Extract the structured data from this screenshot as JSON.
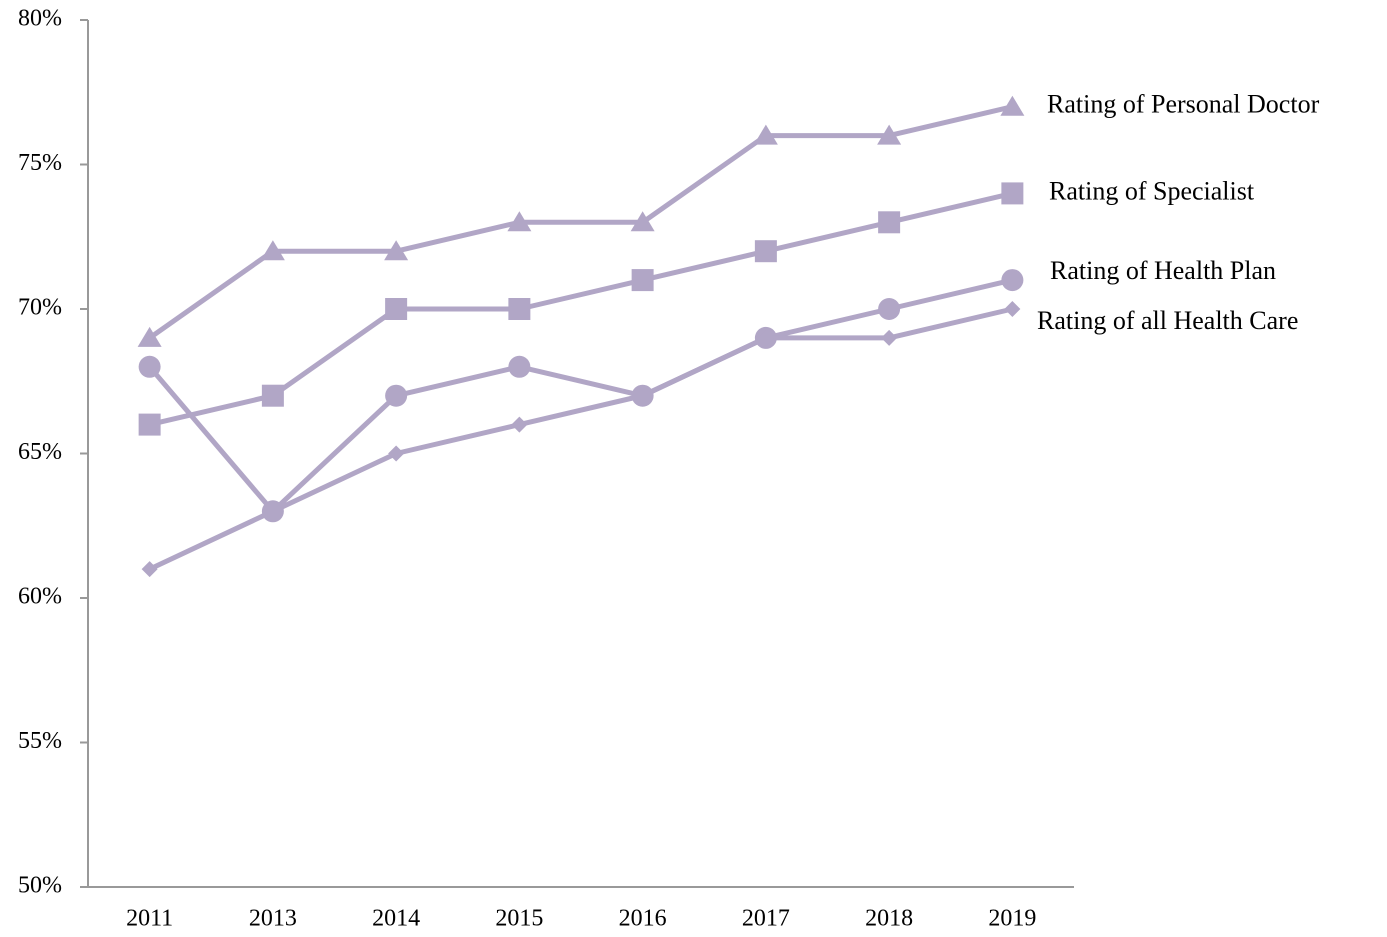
{
  "chart_data": {
    "type": "line",
    "categories": [
      "2011",
      "2013",
      "2014",
      "2015",
      "2016",
      "2017",
      "2018",
      "2019"
    ],
    "series": [
      {
        "name": "Rating of Personal Doctor",
        "color": "#b1a6c6",
        "marker": "triangle",
        "values": [
          69,
          72,
          72,
          73,
          73,
          76,
          76,
          77
        ]
      },
      {
        "name": "Rating of Specialist",
        "color": "#b1a6c6",
        "marker": "square",
        "values": [
          66,
          67,
          70,
          70,
          71,
          72,
          73,
          74
        ]
      },
      {
        "name": "Rating of Health Plan",
        "color": "#b1a6c6",
        "marker": "circle",
        "values": [
          68,
          63,
          67,
          68,
          67,
          69,
          70,
          71
        ]
      },
      {
        "name": "Rating of all Health Care",
        "color": "#b1a6c6",
        "marker": "diamond",
        "values": [
          61,
          63,
          65,
          66,
          67,
          69,
          69,
          70
        ]
      }
    ],
    "ylim": [
      50,
      80
    ],
    "yticks": [
      {
        "value": 50,
        "label": "50%"
      },
      {
        "value": 55,
        "label": "55%"
      },
      {
        "value": 60,
        "label": "60%"
      },
      {
        "value": 65,
        "label": "65%"
      },
      {
        "value": 70,
        "label": "70%"
      },
      {
        "value": 75,
        "label": "75%"
      },
      {
        "value": 80,
        "label": "80%"
      }
    ],
    "grid": false
  }
}
